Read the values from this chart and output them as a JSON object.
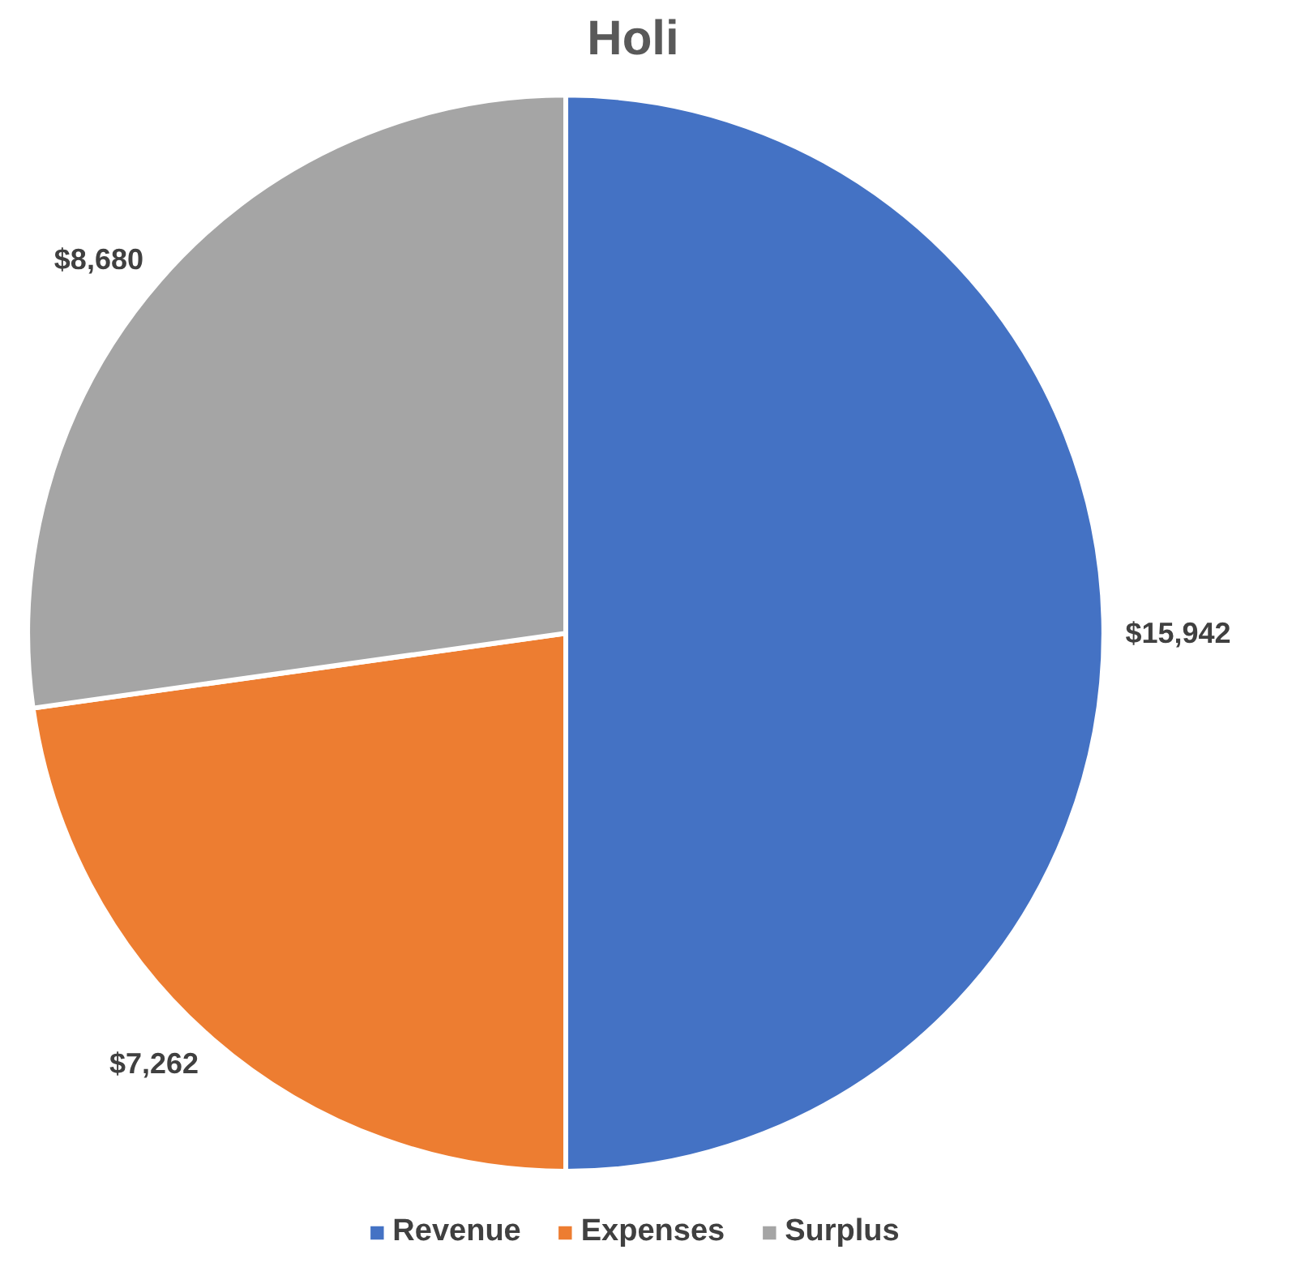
{
  "chart_data": {
    "type": "pie",
    "title": "Holi",
    "categories": [
      "Revenue",
      "Expenses",
      "Surplus"
    ],
    "values": [
      15942,
      7262,
      8680
    ],
    "colors": [
      "#4472c4",
      "#ed7d31",
      "#a5a5a5"
    ],
    "value_labels": [
      "$15,942",
      "$7,262",
      "$8,680"
    ],
    "legend": "bottom"
  }
}
